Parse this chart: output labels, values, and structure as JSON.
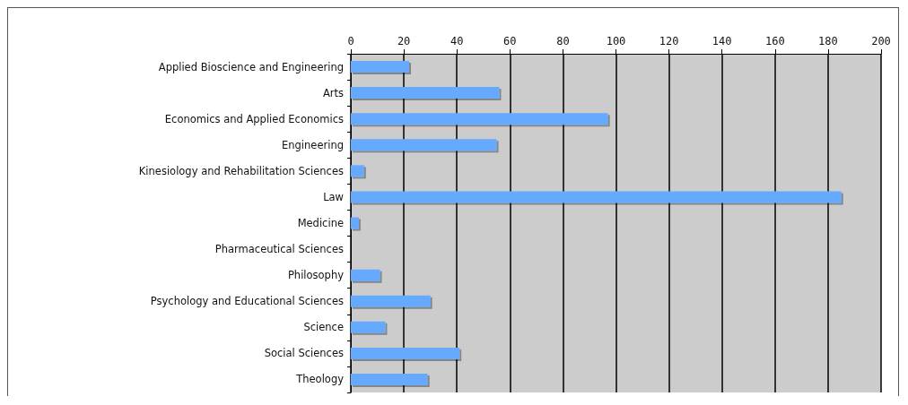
{
  "chart_data": {
    "type": "bar",
    "orientation": "horizontal",
    "categories": [
      "Applied Bioscience and Engineering",
      "Arts",
      "Economics and Applied Economics",
      "Engineering",
      "Kinesiology and Rehabilitation Sciences",
      "Law",
      "Medicine",
      "Pharmaceutical Sciences",
      "Philosophy",
      "Psychology and Educational Sciences",
      "Science",
      "Social Sciences",
      "Theology"
    ],
    "values": [
      22,
      56,
      97,
      55,
      5,
      185,
      3,
      0,
      11,
      30,
      13,
      41,
      29
    ],
    "color": "#66aaff",
    "xlim": [
      0,
      200
    ],
    "xticks": [
      0,
      20,
      40,
      60,
      80,
      100,
      120,
      140,
      160,
      180,
      200
    ],
    "grid": "x"
  }
}
